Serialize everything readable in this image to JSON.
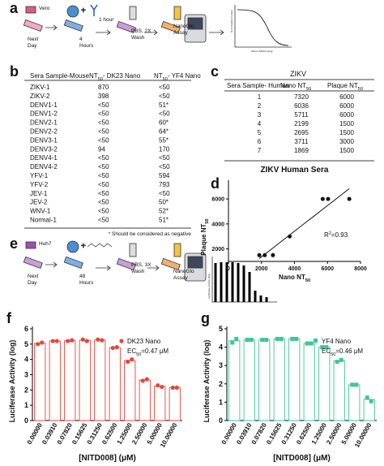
{
  "panel_a": {
    "label": "a",
    "steps": [
      [
        "Vero"
      ],
      [
        "1 hour"
      ],
      [
        "Next",
        "Day"
      ],
      [
        "4",
        "Hours"
      ],
      [
        "PBS, 2X",
        "Wash"
      ],
      [
        "NanoGlo",
        "Assay"
      ]
    ],
    "mini_chart": {
      "ylabel": "% of Positive Control",
      "xlabel": "Serum Dilution (log)"
    }
  },
  "panel_b": {
    "label": "b",
    "headers": [
      "Sera Sample-Mouse",
      {
        "text": "NT",
        "sub": "50",
        "suffix": "- DK23 Nano"
      },
      {
        "text": "NT",
        "sub": "50",
        "suffix": "- YF4 Nano"
      }
    ],
    "rows": [
      [
        "ZIKV-1",
        "870",
        "<50"
      ],
      [
        "ZIKV-2",
        "398",
        "<50"
      ],
      [
        "DENV1-1",
        "<50",
        "51*"
      ],
      [
        "DENV1-2",
        "<50",
        "<50"
      ],
      [
        "DENV2-1",
        "<50",
        "60*"
      ],
      [
        "DENV2-2",
        "<50",
        "64*"
      ],
      [
        "DENV3-1",
        "<50",
        "55*"
      ],
      [
        "DENV3-2",
        "94",
        "170"
      ],
      [
        "DENV4-1",
        "<50",
        "<50"
      ],
      [
        "DENV4-2",
        "<50",
        "<50"
      ],
      [
        "YFV-1",
        "<50",
        "594"
      ],
      [
        "YFV-2",
        "<50",
        "793"
      ],
      [
        "JEV-1",
        "<50",
        "<50"
      ],
      [
        "JEV-2",
        "<50",
        "50*"
      ],
      [
        "WNV-1",
        "<50",
        "52*"
      ],
      [
        "Normal-1",
        "<50",
        "51*"
      ]
    ],
    "footnote": "* Should be considered as negative"
  },
  "panel_c": {
    "label": "c",
    "title": "ZIKV",
    "headers": [
      "Sera Sample- Human",
      {
        "text": "Nano NT",
        "sub": "50"
      },
      {
        "text": "Plaque NT",
        "sub": "50"
      }
    ],
    "rows": [
      [
        "1",
        "7320",
        "6000"
      ],
      [
        "2",
        "6036",
        "6000"
      ],
      [
        "3",
        "5711",
        "6000"
      ],
      [
        "4",
        "2199",
        "1500"
      ],
      [
        "5",
        "2695",
        "1500"
      ],
      [
        "6",
        "3711",
        "3000"
      ],
      [
        "7",
        "1869",
        "1500"
      ]
    ]
  },
  "panel_d": {
    "label": "d"
  },
  "panel_e": {
    "label": "e",
    "steps": [
      [
        "Huh7"
      ],
      [
        "Next",
        "Day"
      ],
      [
        "48",
        "Hours"
      ],
      [
        "PBS, 3X",
        "Wash"
      ],
      [
        "NanoGlo",
        "Assay"
      ]
    ],
    "mini_chart": {
      "ylabel": "Luciferase Activity (log)"
    }
  },
  "panel_f": {
    "label": "f"
  },
  "panel_g": {
    "label": "g"
  },
  "chart_data": [
    {
      "type": "scatter",
      "title": "ZIKV Human Sera",
      "xlabel": {
        "text": "Nano NT",
        "sub": "50"
      },
      "ylabel": {
        "text": "Plaque NT",
        "sub": "50"
      },
      "x": [
        7320,
        6036,
        5711,
        2199,
        2695,
        3711,
        1869
      ],
      "values": [
        6000,
        6000,
        6000,
        1500,
        1500,
        3000,
        1500
      ],
      "color": "#111111",
      "fit_line": true,
      "annotation": {
        "text": "R",
        "sup": "2",
        "suffix": "=0.93"
      },
      "xlim": [
        0,
        8000
      ],
      "xticks": [
        0,
        2000,
        4000,
        6000,
        8000
      ],
      "ylim": [
        1000,
        7500
      ],
      "yticks": [
        2000,
        4000,
        6000
      ]
    },
    {
      "type": "bar",
      "xlabel": "[NITD008] (μM)",
      "ylabel": "Luciferase Activity (log)",
      "categories": [
        "0.00000",
        "0.03910",
        "0.07820",
        "0.15625",
        "0.31250",
        "0.62500",
        "1.25000",
        "2.50000",
        "5.00000",
        "10.00000"
      ],
      "series": [
        {
          "name": "DK23 Nano",
          "color": "#e8463c",
          "marker": "circle",
          "values": [
            5.05,
            5.2,
            5.22,
            5.25,
            5.27,
            4.77,
            3.92,
            2.65,
            2.25,
            2.15
          ],
          "replicates": [
            [
              5.0,
              5.1
            ],
            [
              5.2,
              5.2
            ],
            [
              5.2,
              5.25
            ],
            [
              5.3,
              5.2
            ],
            [
              5.3,
              5.25
            ],
            [
              4.75,
              4.8
            ],
            [
              3.85,
              4.0
            ],
            [
              2.6,
              2.7
            ],
            [
              2.3,
              2.2
            ],
            [
              2.15,
              2.15
            ]
          ]
        }
      ],
      "annotation": {
        "text": "EC",
        "sub": "50",
        "suffix": "=0.47 μM"
      },
      "ylim": [
        0,
        6
      ],
      "yticks": [
        0,
        1,
        2,
        3,
        4,
        5,
        6
      ]
    },
    {
      "type": "bar",
      "xlabel": "[NITD008] (μM)",
      "ylabel": "Luciferase Activity (log)",
      "categories": [
        "0.00000",
        "0.03910",
        "0.07820",
        "0.15625",
        "0.31250",
        "0.62500",
        "1.25000",
        "2.50000",
        "5.00000",
        "10.00000"
      ],
      "series": [
        {
          "name": "YF4 Nano",
          "color": "#3fc49a",
          "marker": "square",
          "values": [
            4.35,
            4.4,
            4.4,
            4.45,
            4.45,
            4.2,
            4.0,
            3.25,
            1.95,
            1.15
          ],
          "replicates": [
            [
              4.25,
              4.45
            ],
            [
              4.4,
              4.4
            ],
            [
              4.4,
              4.4
            ],
            [
              4.45,
              4.45
            ],
            [
              4.45,
              4.45
            ],
            [
              4.2,
              4.2
            ],
            [
              4.0,
              4.0
            ],
            [
              3.2,
              3.3
            ],
            [
              1.95,
              1.95
            ],
            [
              1.25,
              1.05
            ]
          ]
        }
      ],
      "annotation": {
        "text": "EC",
        "sub": "50",
        "suffix": "=0.46 μM"
      },
      "ylim": [
        0,
        5
      ],
      "yticks": [
        0,
        1,
        2,
        3,
        4,
        5
      ]
    }
  ]
}
